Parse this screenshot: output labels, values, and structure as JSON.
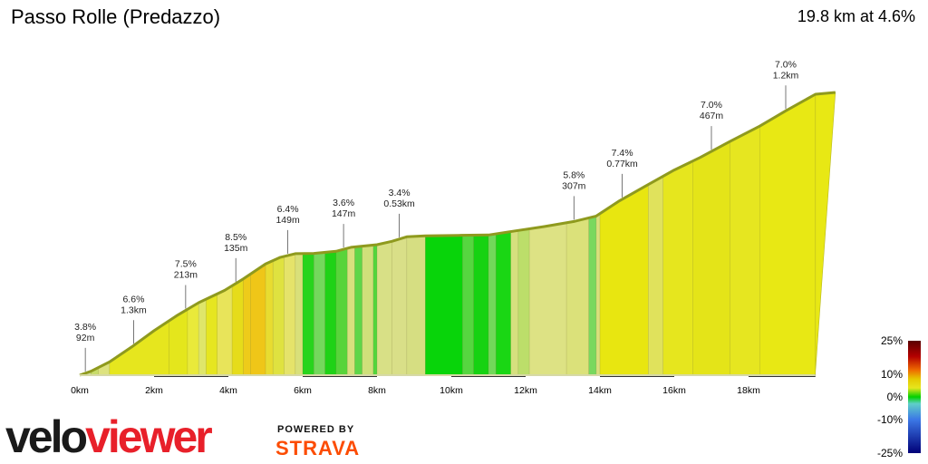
{
  "header": {
    "title": "Passo Rolle (Predazzo)",
    "summary": "19.8 km at 4.6%"
  },
  "branding": {
    "logo_part1": "velo",
    "logo_part2": "viewer",
    "powered": "POWERED BY",
    "strava": "STRAVA",
    "strava_color": "#fc4c02",
    "logo_red": "#e8202a"
  },
  "chart_data": {
    "type": "area",
    "xunit": "km",
    "xlim": [
      0,
      20
    ],
    "x_ticks": [
      "0km",
      "2km",
      "4km",
      "6km",
      "8km",
      "10km",
      "12km",
      "14km",
      "16km",
      "18km"
    ],
    "profile": {
      "x": [
        0,
        0.3,
        0.8,
        1.4,
        2.0,
        2.6,
        3.2,
        3.9,
        4.4,
        5.0,
        5.4,
        5.8,
        6.3,
        6.9,
        7.3,
        8.0,
        8.4,
        8.8,
        9.3,
        10.2,
        11.0,
        11.9,
        12.5,
        13.3,
        13.9,
        14.5,
        15.2,
        16.0,
        16.7,
        17.5,
        18.3,
        19.0,
        19.8
      ],
      "elev": [
        1018,
        1031,
        1062,
        1112,
        1166,
        1215,
        1259,
        1300,
        1338,
        1388,
        1410,
        1422,
        1423,
        1430,
        1443,
        1452,
        1463,
        1478,
        1481,
        1483,
        1484,
        1501,
        1512,
        1529,
        1547,
        1596,
        1645,
        1700,
        1742,
        1795,
        1846,
        1897,
        1952
      ]
    },
    "segments": [
      {
        "start": 0.0,
        "end": 0.3,
        "color": "#d4e09a"
      },
      {
        "start": 0.3,
        "end": 0.5,
        "color": "#c8dc6a"
      },
      {
        "start": 0.5,
        "end": 0.8,
        "color": "#dde27f"
      },
      {
        "start": 0.8,
        "end": 2.4,
        "color": "#e6e61e"
      },
      {
        "start": 2.4,
        "end": 2.9,
        "color": "#e4e61c"
      },
      {
        "start": 2.9,
        "end": 3.2,
        "color": "#e9ea3a"
      },
      {
        "start": 3.2,
        "end": 3.4,
        "color": "#dfe66a"
      },
      {
        "start": 3.4,
        "end": 3.7,
        "color": "#e6e620"
      },
      {
        "start": 3.7,
        "end": 4.1,
        "color": "#e8e45a"
      },
      {
        "start": 4.1,
        "end": 4.4,
        "color": "#e6dc1a"
      },
      {
        "start": 4.4,
        "end": 4.6,
        "color": "#eecb1a"
      },
      {
        "start": 4.6,
        "end": 5.0,
        "color": "#efc618"
      },
      {
        "start": 5.0,
        "end": 5.2,
        "color": "#e8dc30"
      },
      {
        "start": 5.2,
        "end": 5.5,
        "color": "#dfe240"
      },
      {
        "start": 5.5,
        "end": 5.8,
        "color": "#e5e36a"
      },
      {
        "start": 5.8,
        "end": 6.0,
        "color": "#d9e07a"
      },
      {
        "start": 6.0,
        "end": 6.3,
        "color": "#28d41c"
      },
      {
        "start": 6.3,
        "end": 6.6,
        "color": "#74d85c"
      },
      {
        "start": 6.6,
        "end": 6.9,
        "color": "#1fd216"
      },
      {
        "start": 6.9,
        "end": 7.2,
        "color": "#58d43a"
      },
      {
        "start": 7.2,
        "end": 7.4,
        "color": "#d7e07e"
      },
      {
        "start": 7.4,
        "end": 7.6,
        "color": "#5ed648"
      },
      {
        "start": 7.6,
        "end": 7.9,
        "color": "#cfe07a"
      },
      {
        "start": 7.9,
        "end": 8.0,
        "color": "#52d63c"
      },
      {
        "start": 8.0,
        "end": 8.4,
        "color": "#d8e086"
      },
      {
        "start": 8.4,
        "end": 8.8,
        "color": "#d9df88"
      },
      {
        "start": 8.8,
        "end": 9.3,
        "color": "#d6de82"
      },
      {
        "start": 9.3,
        "end": 10.3,
        "color": "#08d40a"
      },
      {
        "start": 10.3,
        "end": 10.6,
        "color": "#56d640"
      },
      {
        "start": 10.6,
        "end": 11.0,
        "color": "#16d212"
      },
      {
        "start": 11.0,
        "end": 11.2,
        "color": "#72d85a"
      },
      {
        "start": 11.2,
        "end": 11.6,
        "color": "#1ad614"
      },
      {
        "start": 11.6,
        "end": 11.8,
        "color": "#d6e07e"
      },
      {
        "start": 11.8,
        "end": 12.1,
        "color": "#bcde6a"
      },
      {
        "start": 12.1,
        "end": 13.1,
        "color": "#dde284"
      },
      {
        "start": 13.1,
        "end": 13.7,
        "color": "#dbe17a"
      },
      {
        "start": 13.7,
        "end": 13.9,
        "color": "#78d85e"
      },
      {
        "start": 13.9,
        "end": 14.0,
        "color": "#d8e07c"
      },
      {
        "start": 14.0,
        "end": 15.3,
        "color": "#e8e610"
      },
      {
        "start": 15.3,
        "end": 15.7,
        "color": "#e0e25c"
      },
      {
        "start": 15.7,
        "end": 16.5,
        "color": "#e6e61e"
      },
      {
        "start": 16.5,
        "end": 17.5,
        "color": "#e4e418"
      },
      {
        "start": 17.5,
        "end": 18.3,
        "color": "#e6e620"
      },
      {
        "start": 18.3,
        "end": 19.8,
        "color": "#e8e814"
      }
    ],
    "annotations": [
      {
        "x": 0.15,
        "grade": "3.8%",
        "length": "92m"
      },
      {
        "x": 1.45,
        "grade": "6.6%",
        "length": "1.3km"
      },
      {
        "x": 2.85,
        "grade": "7.5%",
        "length": "213m"
      },
      {
        "x": 4.2,
        "grade": "8.5%",
        "length": "135m"
      },
      {
        "x": 5.6,
        "grade": "6.4%",
        "length": "149m"
      },
      {
        "x": 7.1,
        "grade": "3.6%",
        "length": "147m"
      },
      {
        "x": 8.6,
        "grade": "3.4%",
        "length": "0.53km"
      },
      {
        "x": 13.3,
        "grade": "5.8%",
        "length": "307m"
      },
      {
        "x": 14.6,
        "grade": "7.4%",
        "length": "0.77km"
      },
      {
        "x": 17.0,
        "grade": "7.0%",
        "length": "467m"
      },
      {
        "x": 19.0,
        "grade": "7.0%",
        "length": "1.2km"
      }
    ],
    "km_bars": [
      [
        2,
        4
      ],
      [
        6,
        8
      ],
      [
        10,
        12
      ],
      [
        14,
        16
      ],
      [
        18,
        19.8
      ]
    ],
    "legend": {
      "labels": [
        "25%",
        "10%",
        "0%",
        "-10%",
        "-25%"
      ],
      "values": [
        25,
        10,
        0,
        -10,
        -25
      ],
      "stops": [
        {
          "v": 25,
          "color": "#5a0000"
        },
        {
          "v": 18,
          "color": "#b40000"
        },
        {
          "v": 12,
          "color": "#ee6a00"
        },
        {
          "v": 8,
          "color": "#e6c800"
        },
        {
          "v": 4,
          "color": "#e6e61e"
        },
        {
          "v": 0,
          "color": "#00d000"
        },
        {
          "v": -3,
          "color": "#5fd0c8"
        },
        {
          "v": -10,
          "color": "#3c78e6"
        },
        {
          "v": -25,
          "color": "#000078"
        }
      ]
    }
  }
}
